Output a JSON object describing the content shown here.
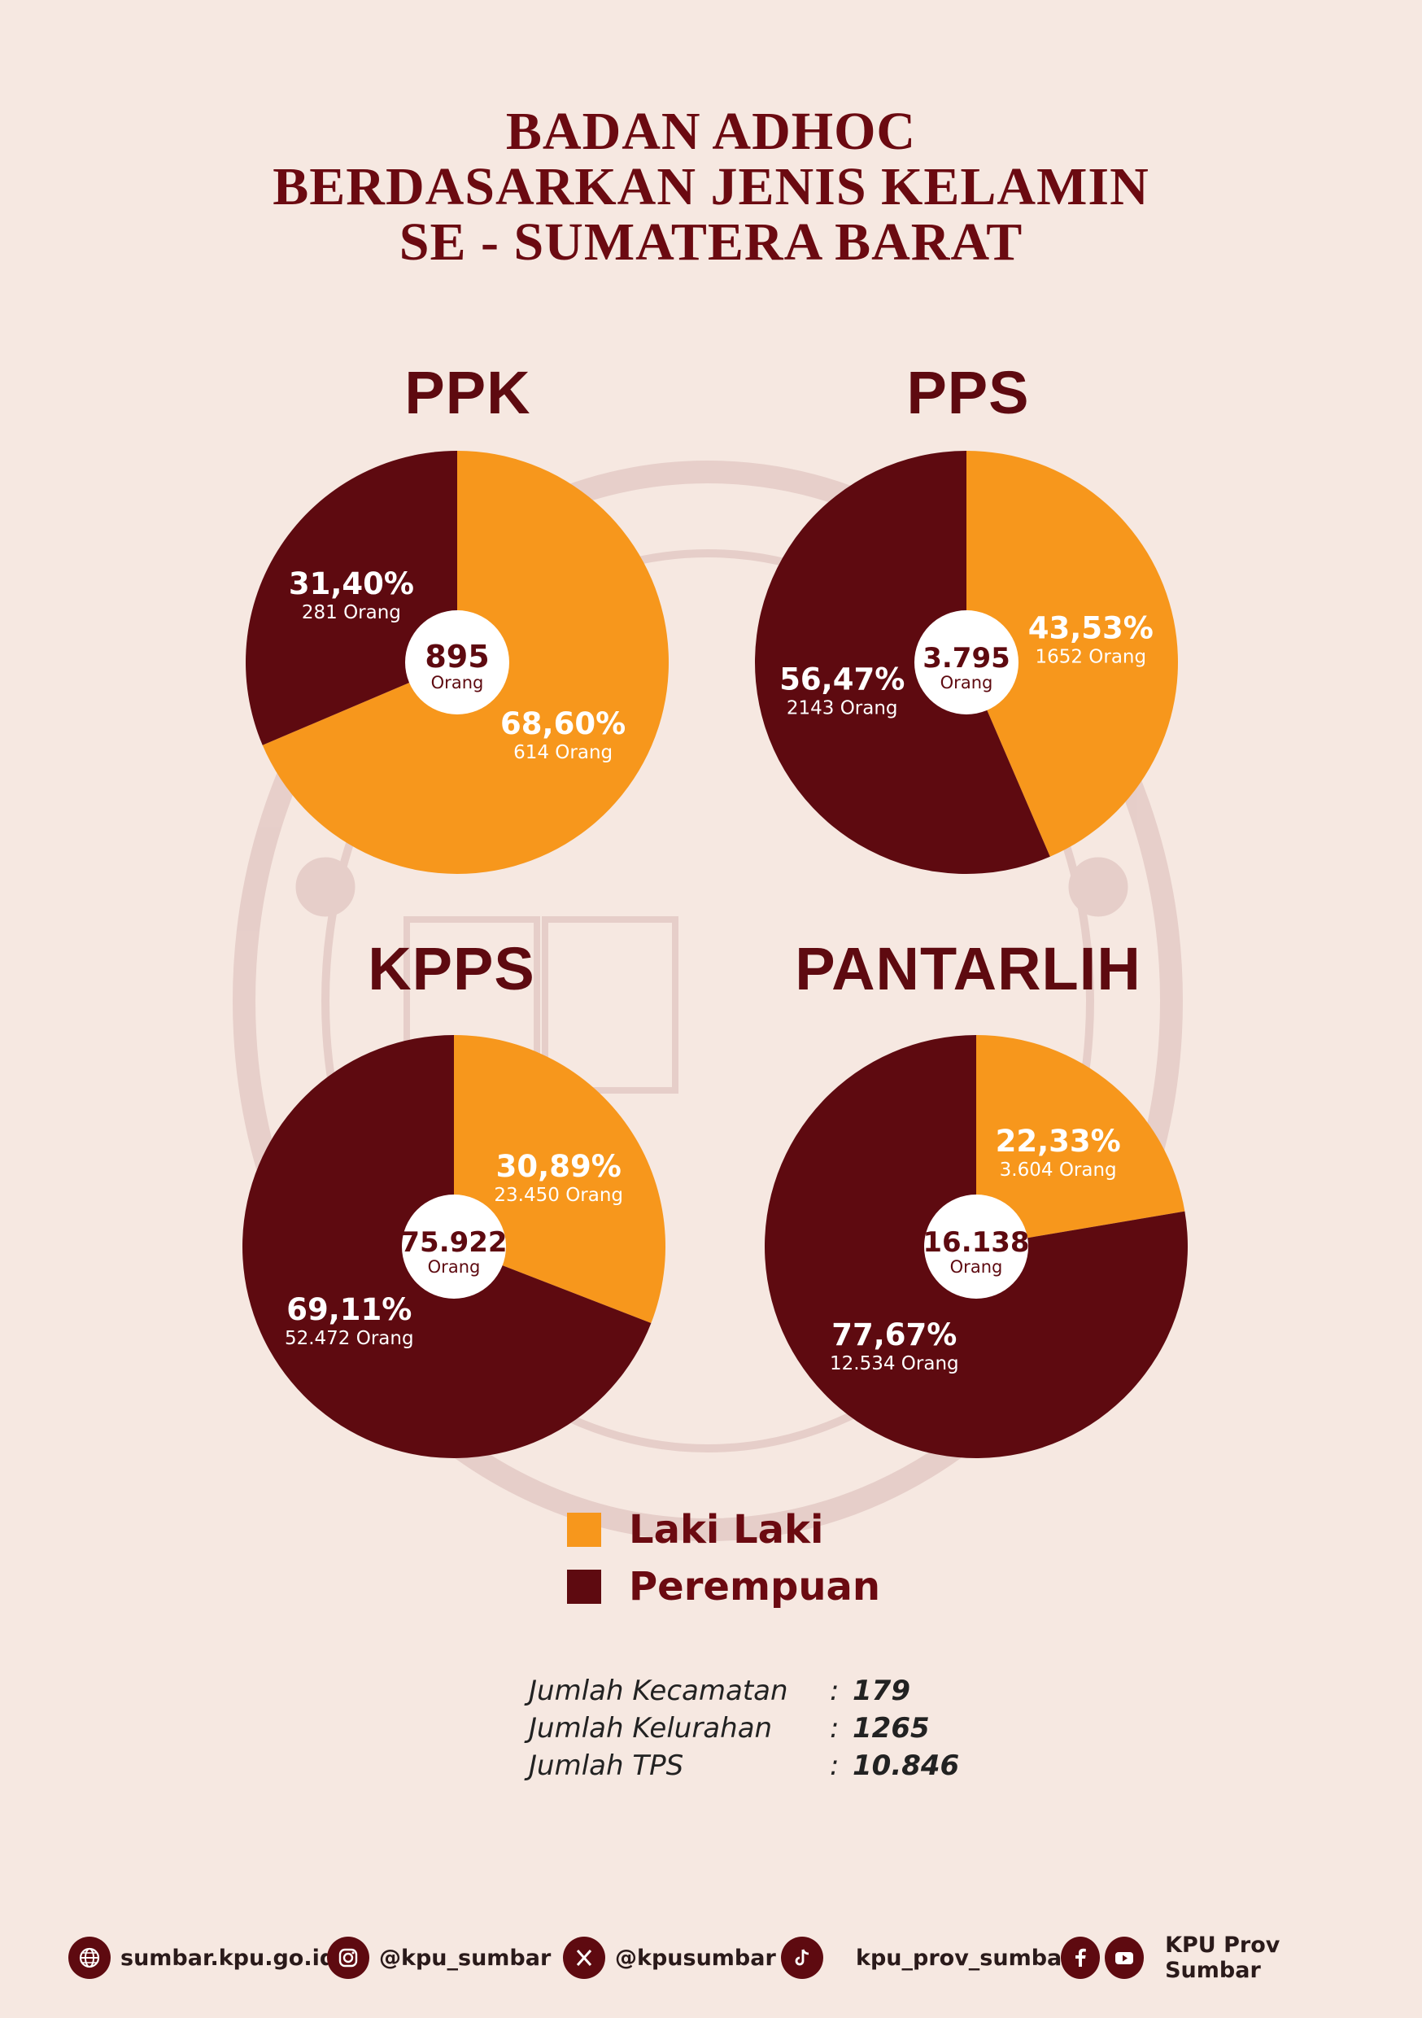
{
  "title": {
    "line1": "BADAN ADHOC",
    "line2": "BERDASARKAN JENIS KELAMIN",
    "line3": "SE - SUMATERA BARAT"
  },
  "colors": {
    "laki_laki": "#f7971c",
    "perempuan": "#5e0a10",
    "background": "#f6e8e1"
  },
  "chart_data": [
    {
      "type": "pie",
      "title": "PPK",
      "total": "895",
      "total_unit": "Orang",
      "slices": [
        {
          "name": "Laki Laki",
          "value": 68.6,
          "label": "68,60%",
          "count": "614 Orang"
        },
        {
          "name": "Perempuan",
          "value": 31.4,
          "label": "31,40%",
          "count": "281 Orang"
        }
      ]
    },
    {
      "type": "pie",
      "title": "PPS",
      "total": "3.795",
      "total_unit": "Orang",
      "slices": [
        {
          "name": "Laki Laki",
          "value": 43.53,
          "label": "43,53%",
          "count": "1652 Orang"
        },
        {
          "name": "Perempuan",
          "value": 56.47,
          "label": "56,47%",
          "count": "2143 Orang"
        }
      ]
    },
    {
      "type": "pie",
      "title": "KPPS",
      "total": "75.922",
      "total_unit": "Orang",
      "slices": [
        {
          "name": "Laki Laki",
          "value": 30.89,
          "label": "30,89%",
          "count": "23.450 Orang"
        },
        {
          "name": "Perempuan",
          "value": 69.11,
          "label": "69,11%",
          "count": "52.472 Orang"
        }
      ]
    },
    {
      "type": "pie",
      "title": "PANTARLIH",
      "total": "16.138",
      "total_unit": "Orang",
      "slices": [
        {
          "name": "Laki Laki",
          "value": 22.33,
          "label": "22,33%",
          "count": "3.604 Orang"
        },
        {
          "name": "Perempuan",
          "value": 77.67,
          "label": "77,67%",
          "count": "12.534 Orang"
        }
      ]
    }
  ],
  "legend": {
    "laki_laki": "Laki Laki",
    "perempuan": "Perempuan"
  },
  "stats": [
    {
      "label": "Jumlah Kecamatan",
      "value": "179"
    },
    {
      "label": "Jumlah Kelurahan",
      "value": "1265"
    },
    {
      "label": "Jumlah TPS",
      "value": "10.846"
    }
  ],
  "footer": {
    "website": "sumbar.kpu.go.id",
    "instagram": "@kpu_sumbar",
    "x": "@kpusumbar",
    "tiktok": "kpu_prov_sumbar",
    "facebook_youtube": "KPU Prov Sumbar",
    "icons": [
      "globe-icon",
      "instagram-icon",
      "x-icon",
      "tiktok-icon",
      "facebook-icon",
      "youtube-icon"
    ]
  }
}
